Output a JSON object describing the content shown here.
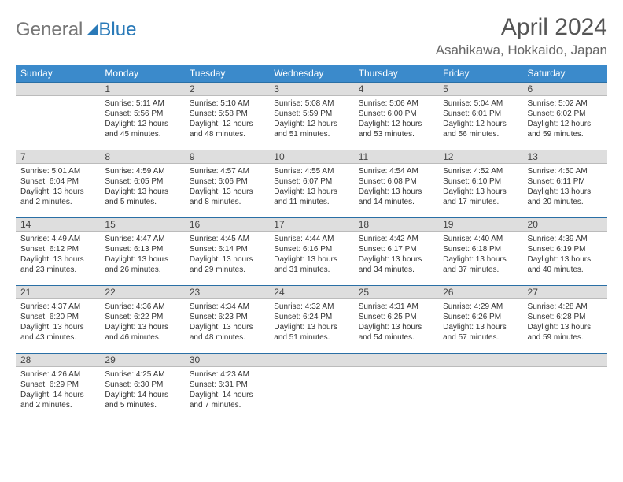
{
  "logo": {
    "part1": "General",
    "part2": "Blue"
  },
  "title": "April 2024",
  "location": "Asahikawa, Hokkaido, Japan",
  "day_headers": [
    "Sunday",
    "Monday",
    "Tuesday",
    "Wednesday",
    "Thursday",
    "Friday",
    "Saturday"
  ],
  "colors": {
    "header_bg": "#3b8acb",
    "header_text": "#ffffff",
    "daynum_bg": "#dedede",
    "daynum_border_top": "#2a6fa5",
    "text": "#333333",
    "title_color": "#555555",
    "logo_blue": "#2a7ab8"
  },
  "weeks": [
    [
      {
        "day": "",
        "empty": true
      },
      {
        "day": "1",
        "sunrise": "Sunrise: 5:11 AM",
        "sunset": "Sunset: 5:56 PM",
        "daylight1": "Daylight: 12 hours",
        "daylight2": "and 45 minutes."
      },
      {
        "day": "2",
        "sunrise": "Sunrise: 5:10 AM",
        "sunset": "Sunset: 5:58 PM",
        "daylight1": "Daylight: 12 hours",
        "daylight2": "and 48 minutes."
      },
      {
        "day": "3",
        "sunrise": "Sunrise: 5:08 AM",
        "sunset": "Sunset: 5:59 PM",
        "daylight1": "Daylight: 12 hours",
        "daylight2": "and 51 minutes."
      },
      {
        "day": "4",
        "sunrise": "Sunrise: 5:06 AM",
        "sunset": "Sunset: 6:00 PM",
        "daylight1": "Daylight: 12 hours",
        "daylight2": "and 53 minutes."
      },
      {
        "day": "5",
        "sunrise": "Sunrise: 5:04 AM",
        "sunset": "Sunset: 6:01 PM",
        "daylight1": "Daylight: 12 hours",
        "daylight2": "and 56 minutes."
      },
      {
        "day": "6",
        "sunrise": "Sunrise: 5:02 AM",
        "sunset": "Sunset: 6:02 PM",
        "daylight1": "Daylight: 12 hours",
        "daylight2": "and 59 minutes."
      }
    ],
    [
      {
        "day": "7",
        "sunrise": "Sunrise: 5:01 AM",
        "sunset": "Sunset: 6:04 PM",
        "daylight1": "Daylight: 13 hours",
        "daylight2": "and 2 minutes."
      },
      {
        "day": "8",
        "sunrise": "Sunrise: 4:59 AM",
        "sunset": "Sunset: 6:05 PM",
        "daylight1": "Daylight: 13 hours",
        "daylight2": "and 5 minutes."
      },
      {
        "day": "9",
        "sunrise": "Sunrise: 4:57 AM",
        "sunset": "Sunset: 6:06 PM",
        "daylight1": "Daylight: 13 hours",
        "daylight2": "and 8 minutes."
      },
      {
        "day": "10",
        "sunrise": "Sunrise: 4:55 AM",
        "sunset": "Sunset: 6:07 PM",
        "daylight1": "Daylight: 13 hours",
        "daylight2": "and 11 minutes."
      },
      {
        "day": "11",
        "sunrise": "Sunrise: 4:54 AM",
        "sunset": "Sunset: 6:08 PM",
        "daylight1": "Daylight: 13 hours",
        "daylight2": "and 14 minutes."
      },
      {
        "day": "12",
        "sunrise": "Sunrise: 4:52 AM",
        "sunset": "Sunset: 6:10 PM",
        "daylight1": "Daylight: 13 hours",
        "daylight2": "and 17 minutes."
      },
      {
        "day": "13",
        "sunrise": "Sunrise: 4:50 AM",
        "sunset": "Sunset: 6:11 PM",
        "daylight1": "Daylight: 13 hours",
        "daylight2": "and 20 minutes."
      }
    ],
    [
      {
        "day": "14",
        "sunrise": "Sunrise: 4:49 AM",
        "sunset": "Sunset: 6:12 PM",
        "daylight1": "Daylight: 13 hours",
        "daylight2": "and 23 minutes."
      },
      {
        "day": "15",
        "sunrise": "Sunrise: 4:47 AM",
        "sunset": "Sunset: 6:13 PM",
        "daylight1": "Daylight: 13 hours",
        "daylight2": "and 26 minutes."
      },
      {
        "day": "16",
        "sunrise": "Sunrise: 4:45 AM",
        "sunset": "Sunset: 6:14 PM",
        "daylight1": "Daylight: 13 hours",
        "daylight2": "and 29 minutes."
      },
      {
        "day": "17",
        "sunrise": "Sunrise: 4:44 AM",
        "sunset": "Sunset: 6:16 PM",
        "daylight1": "Daylight: 13 hours",
        "daylight2": "and 31 minutes."
      },
      {
        "day": "18",
        "sunrise": "Sunrise: 4:42 AM",
        "sunset": "Sunset: 6:17 PM",
        "daylight1": "Daylight: 13 hours",
        "daylight2": "and 34 minutes."
      },
      {
        "day": "19",
        "sunrise": "Sunrise: 4:40 AM",
        "sunset": "Sunset: 6:18 PM",
        "daylight1": "Daylight: 13 hours",
        "daylight2": "and 37 minutes."
      },
      {
        "day": "20",
        "sunrise": "Sunrise: 4:39 AM",
        "sunset": "Sunset: 6:19 PM",
        "daylight1": "Daylight: 13 hours",
        "daylight2": "and 40 minutes."
      }
    ],
    [
      {
        "day": "21",
        "sunrise": "Sunrise: 4:37 AM",
        "sunset": "Sunset: 6:20 PM",
        "daylight1": "Daylight: 13 hours",
        "daylight2": "and 43 minutes."
      },
      {
        "day": "22",
        "sunrise": "Sunrise: 4:36 AM",
        "sunset": "Sunset: 6:22 PM",
        "daylight1": "Daylight: 13 hours",
        "daylight2": "and 46 minutes."
      },
      {
        "day": "23",
        "sunrise": "Sunrise: 4:34 AM",
        "sunset": "Sunset: 6:23 PM",
        "daylight1": "Daylight: 13 hours",
        "daylight2": "and 48 minutes."
      },
      {
        "day": "24",
        "sunrise": "Sunrise: 4:32 AM",
        "sunset": "Sunset: 6:24 PM",
        "daylight1": "Daylight: 13 hours",
        "daylight2": "and 51 minutes."
      },
      {
        "day": "25",
        "sunrise": "Sunrise: 4:31 AM",
        "sunset": "Sunset: 6:25 PM",
        "daylight1": "Daylight: 13 hours",
        "daylight2": "and 54 minutes."
      },
      {
        "day": "26",
        "sunrise": "Sunrise: 4:29 AM",
        "sunset": "Sunset: 6:26 PM",
        "daylight1": "Daylight: 13 hours",
        "daylight2": "and 57 minutes."
      },
      {
        "day": "27",
        "sunrise": "Sunrise: 4:28 AM",
        "sunset": "Sunset: 6:28 PM",
        "daylight1": "Daylight: 13 hours",
        "daylight2": "and 59 minutes."
      }
    ],
    [
      {
        "day": "28",
        "sunrise": "Sunrise: 4:26 AM",
        "sunset": "Sunset: 6:29 PM",
        "daylight1": "Daylight: 14 hours",
        "daylight2": "and 2 minutes."
      },
      {
        "day": "29",
        "sunrise": "Sunrise: 4:25 AM",
        "sunset": "Sunset: 6:30 PM",
        "daylight1": "Daylight: 14 hours",
        "daylight2": "and 5 minutes."
      },
      {
        "day": "30",
        "sunrise": "Sunrise: 4:23 AM",
        "sunset": "Sunset: 6:31 PM",
        "daylight1": "Daylight: 14 hours",
        "daylight2": "and 7 minutes."
      },
      {
        "day": "",
        "empty": true
      },
      {
        "day": "",
        "empty": true
      },
      {
        "day": "",
        "empty": true
      },
      {
        "day": "",
        "empty": true
      }
    ]
  ]
}
